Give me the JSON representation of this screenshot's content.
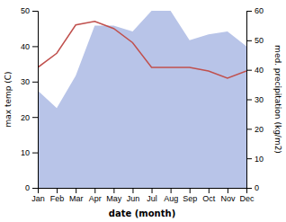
{
  "chart_data": {
    "type": "line",
    "categories": [
      "Jan",
      "Feb",
      "Mar",
      "Apr",
      "May",
      "Jun",
      "Jul",
      "Aug",
      "Sep",
      "Oct",
      "Nov",
      "Dec"
    ],
    "series": [
      {
        "type": "area",
        "axis": "y2",
        "color": "#b8c4e8",
        "values": [
          33,
          27,
          38,
          55,
          55,
          53,
          60,
          60,
          50,
          52,
          53,
          48
        ]
      },
      {
        "type": "line",
        "color": "#c0504d",
        "values": [
          34,
          38,
          46,
          47,
          45,
          41,
          34,
          34,
          34,
          33,
          31,
          33
        ]
      }
    ],
    "xlabel": "date (month)",
    "ylabel": "max temp (C)",
    "y2label": "med. precipitation (kg/m2)",
    "ylim": [
      0,
      50
    ],
    "yticks": [
      0,
      10,
      20,
      30,
      40,
      50
    ],
    "y2lim": [
      0,
      60
    ],
    "y2ticks": [
      0,
      10,
      20,
      30,
      40,
      50,
      60
    ],
    "grid": false
  }
}
